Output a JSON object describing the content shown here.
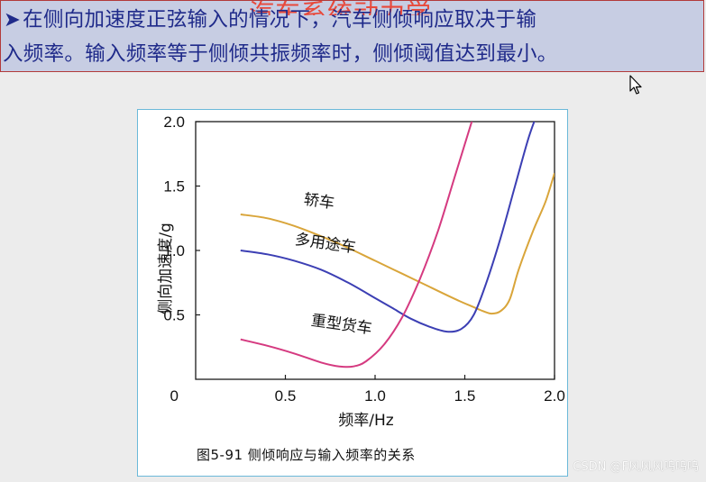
{
  "banner": {
    "ghost_title": "汽车系统动力学",
    "bullet": "➤",
    "line1": "在侧向加速度正弦输入的情况下，汽车侧倾响应取决于输",
    "line2": "入频率。输入频率等于侧倾共振频率时，侧倾阈值达到最小。"
  },
  "caption": "图5-91   侧倾响应与输入频率的关系",
  "watermark": "CSDN @F风风风呜呜呜",
  "colors": {
    "sedan": "#d9a53a",
    "suv": "#3c3fb4",
    "truck": "#d53a80",
    "axis": "#1a1a1a"
  },
  "chart_data": {
    "type": "line",
    "xlabel": "频率/Hz",
    "ylabel": "侧向加速度/g",
    "xlim": [
      0,
      2.0
    ],
    "ylim": [
      0,
      2.0
    ],
    "x_ticks": [
      0.5,
      1.0,
      1.5,
      2.0
    ],
    "x_tick_labels": [
      "0.5",
      "1.0",
      "1.5",
      "2.0"
    ],
    "y_ticks": [
      0.5,
      1.0,
      1.5,
      2.0
    ],
    "y_tick_labels": [
      "0.5",
      "1.0",
      "1.5",
      "2.0"
    ],
    "origin_label": "0",
    "grid": false,
    "series": [
      {
        "name": "轿车",
        "color_key": "sedan",
        "x": [
          0.25,
          0.4,
          0.55,
          0.7,
          0.85,
          1.0,
          1.15,
          1.3,
          1.45,
          1.55,
          1.6,
          1.65,
          1.7,
          1.75,
          1.8,
          1.88,
          1.95,
          2.0
        ],
        "y": [
          1.28,
          1.25,
          1.19,
          1.11,
          1.02,
          0.92,
          0.82,
          0.72,
          0.62,
          0.56,
          0.53,
          0.51,
          0.53,
          0.62,
          0.85,
          1.15,
          1.38,
          1.6
        ],
        "label_at": [
          0.6,
          1.36
        ]
      },
      {
        "name": "多用途车",
        "color_key": "suv",
        "x": [
          0.25,
          0.4,
          0.55,
          0.7,
          0.85,
          1.0,
          1.1,
          1.2,
          1.3,
          1.4,
          1.48,
          1.55,
          1.62,
          1.7,
          1.78,
          1.85,
          1.9
        ],
        "y": [
          1.0,
          0.97,
          0.92,
          0.85,
          0.75,
          0.63,
          0.55,
          0.47,
          0.41,
          0.37,
          0.39,
          0.5,
          0.75,
          1.1,
          1.5,
          1.85,
          2.05
        ],
        "label_at": [
          0.55,
          1.05
        ]
      },
      {
        "name": "重型货车",
        "color_key": "truck",
        "x": [
          0.25,
          0.4,
          0.55,
          0.7,
          0.8,
          0.88,
          0.95,
          1.05,
          1.15,
          1.25,
          1.35,
          1.45,
          1.55,
          1.63
        ],
        "y": [
          0.31,
          0.26,
          0.2,
          0.13,
          0.1,
          0.1,
          0.14,
          0.27,
          0.48,
          0.78,
          1.15,
          1.6,
          2.05,
          2.4
        ],
        "label_at": [
          0.64,
          0.42
        ]
      }
    ]
  }
}
